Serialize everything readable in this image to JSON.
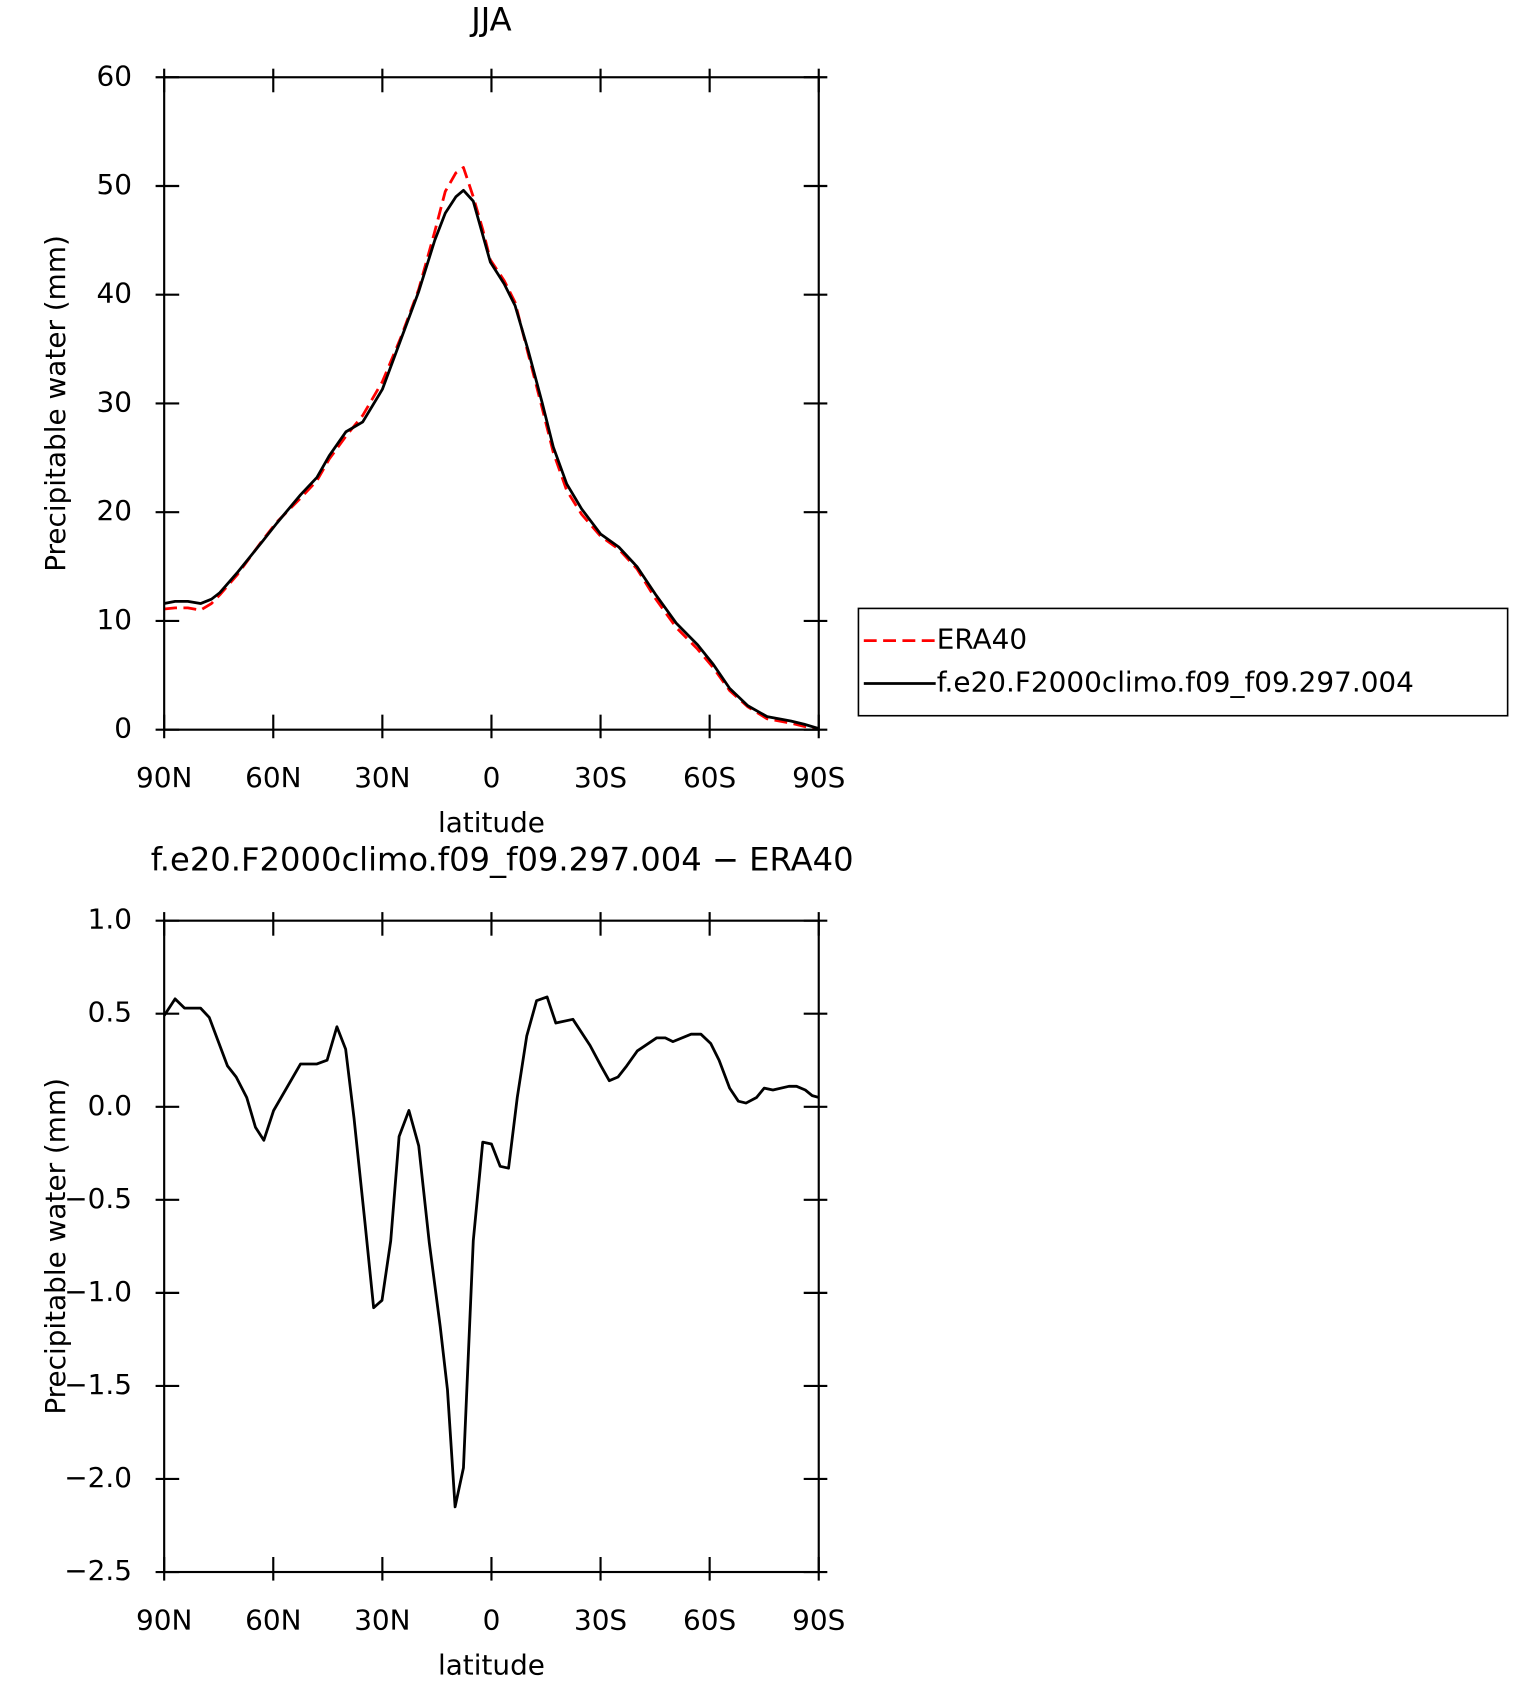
{
  "chart_data": [
    {
      "type": "line",
      "title": "JJA",
      "xlabel": "latitude",
      "ylabel": "Precipitable water (mm)",
      "xlim": [
        90,
        -90
      ],
      "xticks": [
        {
          "value": 90,
          "label": "90N"
        },
        {
          "value": 60,
          "label": "60N"
        },
        {
          "value": 30,
          "label": "30N"
        },
        0,
        {
          "value": -30,
          "label": "30S"
        },
        {
          "value": -60,
          "label": "60S"
        },
        {
          "value": -90,
          "label": "90S"
        }
      ],
      "ylim": [
        0,
        60
      ],
      "yticks": [
        0,
        10,
        20,
        30,
        40,
        50,
        60
      ],
      "legend": "right",
      "x": [
        90,
        87,
        83.5,
        80,
        77,
        74.7,
        70,
        63,
        59,
        52.5,
        48,
        44.6,
        40,
        35.4,
        30,
        25,
        20,
        15.6,
        12.7,
        9.8,
        7.7,
        5,
        2.4,
        0.3,
        -3.5,
        -6.5,
        -10,
        -14,
        -17,
        -20.7,
        -24.8,
        -30,
        -35,
        -40,
        -45,
        -50.8,
        -56.7,
        -61,
        -65.5,
        -70.5,
        -75.8,
        -82.3,
        -86,
        -90
      ],
      "series": [
        {
          "name": "ERA40",
          "color": "#ff0000",
          "line_style": "dashed",
          "values": [
            11.1,
            11.2,
            11.2,
            11.0,
            11.6,
            12.4,
            14.2,
            17.4,
            19.1,
            21.3,
            22.9,
            24.9,
            27.0,
            28.9,
            32.0,
            36.0,
            40.5,
            45.8,
            49.5,
            51.2,
            51.7,
            49.0,
            46.0,
            43.2,
            41.3,
            39.3,
            34.7,
            29.5,
            25.5,
            22.0,
            19.8,
            17.8,
            16.6,
            14.8,
            12.1,
            9.4,
            7.4,
            5.7,
            3.6,
            2.1,
            1.0,
            0.6,
            0.3,
            0.1
          ]
        },
        {
          "name": "f.e20.F2000climo.f09_f09.297.004",
          "color": "#000000",
          "line_style": "solid",
          "values": [
            11.6,
            11.8,
            11.8,
            11.6,
            12.0,
            12.6,
            14.4,
            17.3,
            19.0,
            21.6,
            23.2,
            25.2,
            27.4,
            28.3,
            31.3,
            35.8,
            40.3,
            45.0,
            47.5,
            49.0,
            49.6,
            48.6,
            45.5,
            43.0,
            41.0,
            39.0,
            35.0,
            30.0,
            26.0,
            22.6,
            20.3,
            18.0,
            16.8,
            15.0,
            12.5,
            9.8,
            7.8,
            6.0,
            3.8,
            2.2,
            1.2,
            0.8,
            0.5,
            0.1
          ]
        }
      ]
    },
    {
      "type": "line",
      "title": "f.e20.F2000climo.f09_f09.297.004 − ERA40",
      "xlabel": "latitude",
      "ylabel": "Precipitable water (mm)",
      "xlim": [
        90,
        -90
      ],
      "xticks": [
        {
          "value": 90,
          "label": "90N"
        },
        {
          "value": 60,
          "label": "60N"
        },
        {
          "value": 30,
          "label": "30N"
        },
        0,
        {
          "value": -30,
          "label": "30S"
        },
        {
          "value": -60,
          "label": "60S"
        },
        {
          "value": -90,
          "label": "90S"
        }
      ],
      "ylim": [
        -2.5,
        1.0
      ],
      "yticks": [
        {
          "value": -2.5,
          "label": "−2.5"
        },
        {
          "value": -2.0,
          "label": "−2.0"
        },
        {
          "value": -1.5,
          "label": "−1.5"
        },
        {
          "value": -1.0,
          "label": "−1.0"
        },
        {
          "value": -0.5,
          "label": "−0.5"
        },
        {
          "value": 0,
          "label": "0.0"
        },
        0.5,
        {
          "value": 1.0,
          "label": "1.0"
        }
      ],
      "x": [
        90,
        87,
        84.4,
        80,
        77.6,
        75.3,
        72.6,
        70.2,
        67.3,
        64.9,
        62.6,
        59.9,
        52.5,
        48,
        45.2,
        42.5,
        40.1,
        37.8,
        34.8,
        32.4,
        30.1,
        27.7,
        25.4,
        22.7,
        20,
        17.1,
        14.1,
        12.1,
        10,
        7.7,
        5,
        2.4,
        0,
        -2.4,
        -4.7,
        -7.1,
        -9.7,
        -12.4,
        -15.3,
        -17.7,
        -22.4,
        -27.1,
        -30.1,
        -32.4,
        -34.8,
        -37.2,
        -40.1,
        -45.4,
        -47.8,
        -49.9,
        -54.9,
        -57.6,
        -60.3,
        -62.6,
        -65.5,
        -67.9,
        -70,
        -72.9,
        -75,
        -77.4,
        -81.8,
        -83.9,
        -86.3,
        -88.2,
        -90
      ],
      "series": [
        {
          "color": "#000000",
          "line_style": "solid",
          "values": [
            0.49,
            0.58,
            0.53,
            0.53,
            0.48,
            0.36,
            0.22,
            0.16,
            0.05,
            -0.11,
            -0.18,
            -0.02,
            0.23,
            0.23,
            0.25,
            0.43,
            0.31,
            -0.06,
            -0.62,
            -1.08,
            -1.04,
            -0.72,
            -0.16,
            -0.02,
            -0.21,
            -0.73,
            -1.18,
            -1.52,
            -2.15,
            -1.94,
            -0.72,
            -0.19,
            -0.2,
            -0.32,
            -0.33,
            0.05,
            0.38,
            0.57,
            0.59,
            0.45,
            0.47,
            0.33,
            0.22,
            0.14,
            0.16,
            0.22,
            0.3,
            0.37,
            0.37,
            0.35,
            0.39,
            0.39,
            0.34,
            0.25,
            0.1,
            0.03,
            0.02,
            0.05,
            0.1,
            0.09,
            0.11,
            0.11,
            0.09,
            0.06,
            0.05
          ]
        }
      ]
    }
  ]
}
